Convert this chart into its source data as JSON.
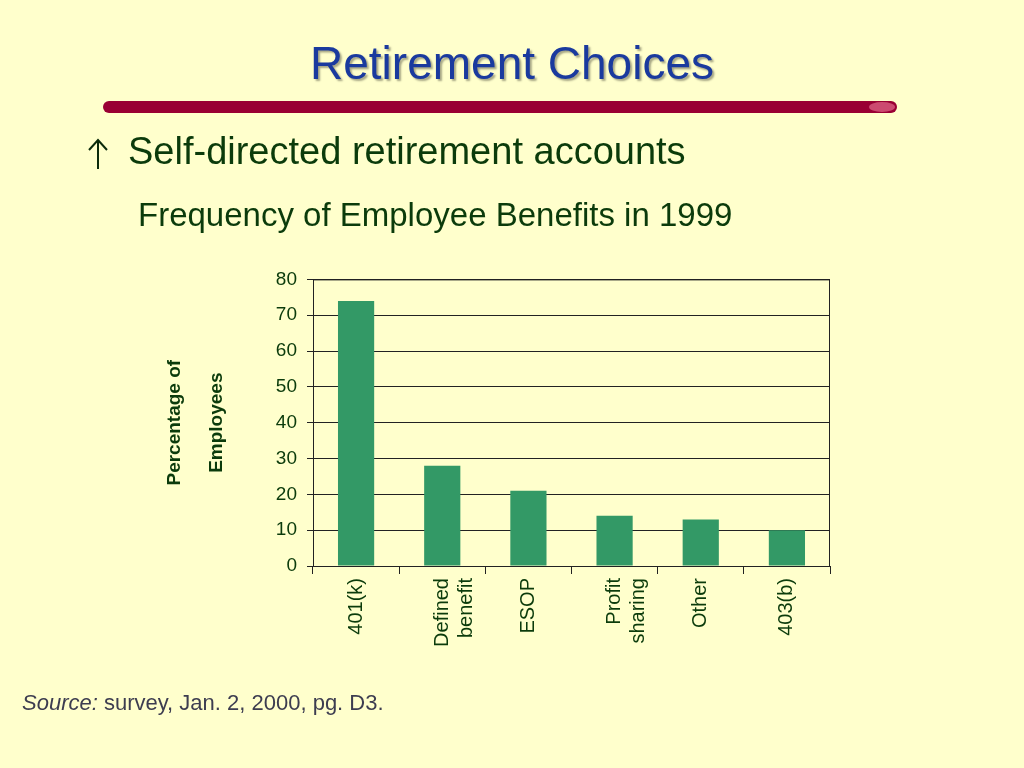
{
  "chart_data": {
    "type": "bar",
    "title": "Retirement Choices",
    "subtitle": "Self-directed retirement accounts",
    "ylabel": "Percentage of Employees",
    "annotations": [
      "Frequency of Employee Benefits in 1999",
      "Source: survey, Jan. 2, 2000, pg. D3."
    ],
    "categories": [
      "401(k)",
      "Defined benefit",
      "ESOP",
      "Profit sharing",
      "Other",
      "403(b)"
    ],
    "values": [
      74,
      28,
      21,
      14,
      13,
      10
    ],
    "color": "#339966",
    "ylim": [
      0,
      80
    ],
    "yticks": [
      0,
      10,
      20,
      30,
      40,
      50,
      60,
      70,
      80
    ],
    "grid": "y"
  }
}
